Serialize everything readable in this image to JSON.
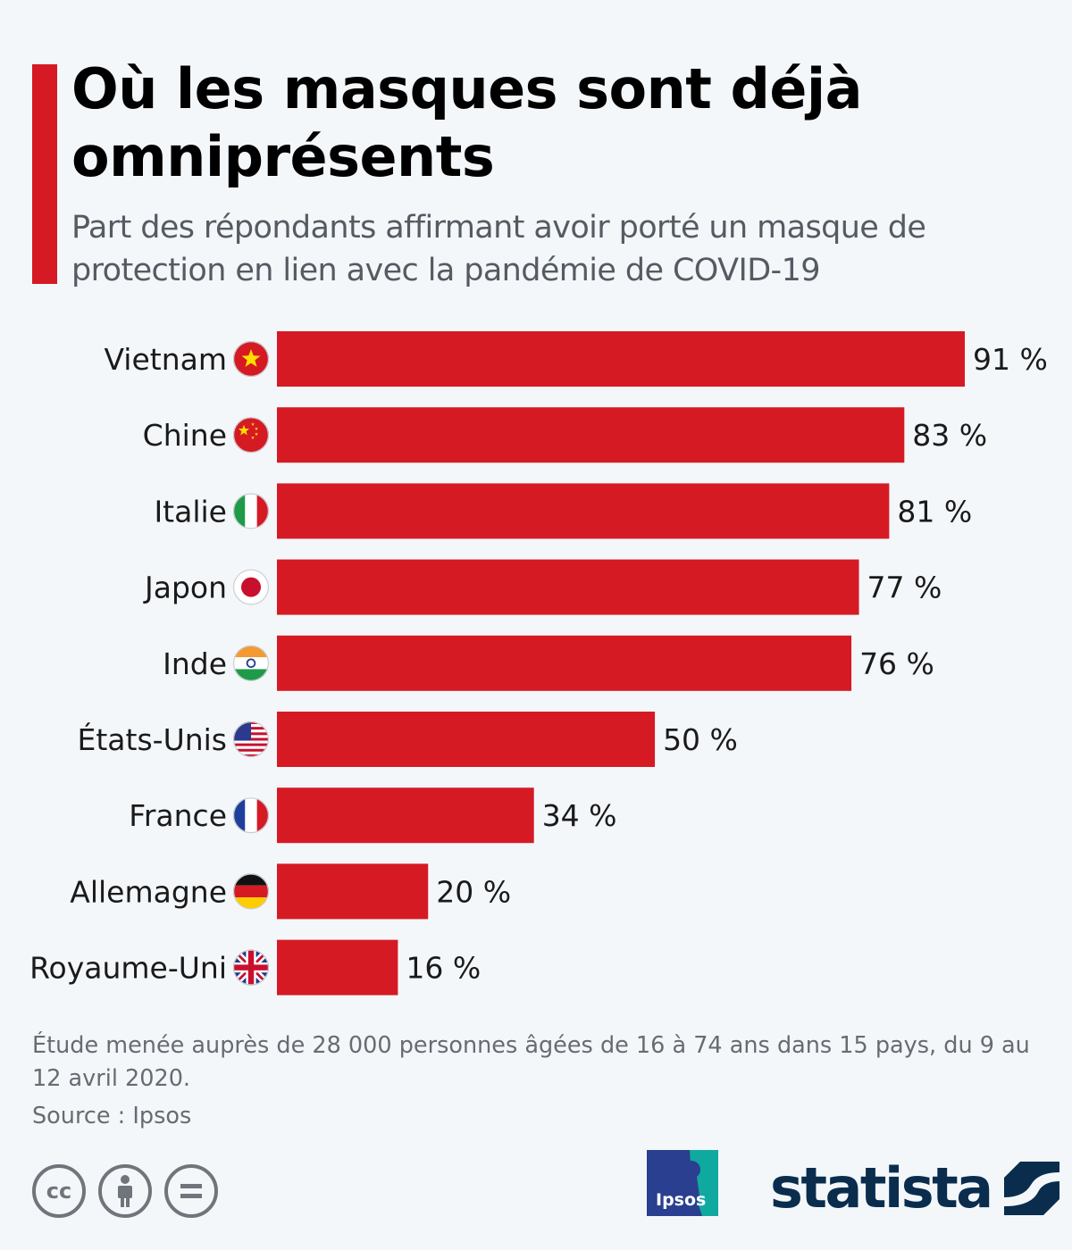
{
  "title": "Où les masques sont déjà omniprésents",
  "subtitle": "Part des répondants affirmant avoir porté un masque de protection en lien avec la pandémie de COVID-19",
  "colors": {
    "accent": "#d51a24",
    "bar": "#d51a24",
    "brand": "#0a2d4d"
  },
  "chart_data": {
    "type": "bar",
    "orientation": "horizontal",
    "categories": [
      "Vietnam",
      "Chine",
      "Italie",
      "Japon",
      "Inde",
      "États-Unis",
      "France",
      "Allemagne",
      "Royaume-Uni"
    ],
    "values": [
      91,
      83,
      81,
      77,
      76,
      50,
      34,
      20,
      16
    ],
    "value_labels": [
      "91 %",
      "83 %",
      "81 %",
      "77 %",
      "76 %",
      "50 %",
      "34 %",
      "20 %",
      "16 %"
    ],
    "flags": [
      "vietnam-flag-icon",
      "china-flag-icon",
      "italy-flag-icon",
      "japan-flag-icon",
      "india-flag-icon",
      "usa-flag-icon",
      "france-flag-icon",
      "germany-flag-icon",
      "uk-flag-icon"
    ],
    "xlim": [
      0,
      100
    ],
    "grid": false,
    "legend": "none"
  },
  "footnote": "Étude menée auprès de 28 000 personnes âgées de 16 à 74 ans dans 15 pays, du 9 au 12 avril 2020.",
  "source": "Source : Ipsos",
  "license_icons": [
    "cc-icon",
    "attribution-icon",
    "no-derivatives-icon"
  ],
  "brand": {
    "ipsos": "Ipsos",
    "statista": "statista"
  }
}
